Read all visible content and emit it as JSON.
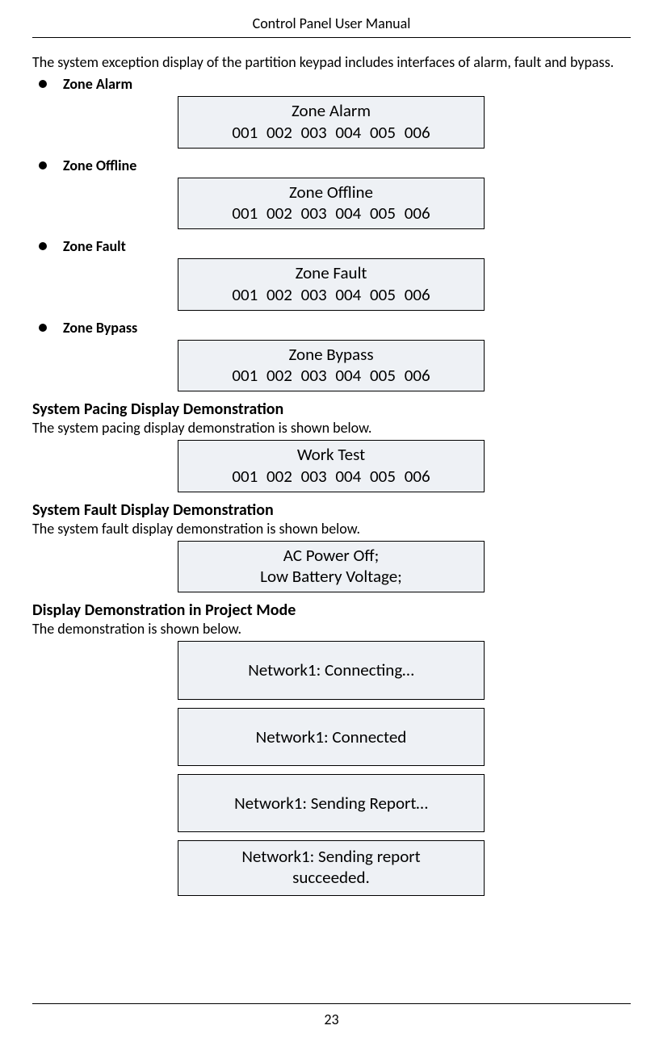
{
  "header": {
    "title": "Control Panel User Manual"
  },
  "intro": "The system exception display of the partition keypad includes interfaces of alarm, fault and bypass.",
  "zone_numbers": "001  002  003  004  005  006",
  "bullets": {
    "alarm": {
      "label": "Zone Alarm",
      "box_title": "Zone Alarm"
    },
    "offline": {
      "label": "Zone Offline",
      "box_title": "Zone Offline"
    },
    "fault": {
      "label": "Zone Fault",
      "box_title": "Zone Fault"
    },
    "bypass": {
      "label": "Zone Bypass",
      "box_title": "Zone Bypass"
    }
  },
  "sections": {
    "pacing": {
      "heading": "System Pacing Display Demonstration",
      "body": "The system pacing display demonstration is shown below.",
      "box_title": "Work Test"
    },
    "fault": {
      "heading": "System Fault Display Demonstration",
      "body": "The system fault display demonstration is shown below.",
      "box_line1": "AC Power Off;",
      "box_line2": "Low Battery Voltage;"
    },
    "project": {
      "heading": "Display Demonstration in Project Mode",
      "body": "The demonstration is shown below.",
      "box1": "Network1: Connecting…",
      "box2": "Network1: Connected",
      "box3": "Network1: Sending Report…",
      "box4_line1": "Network1: Sending report",
      "box4_line2": "succeeded."
    }
  },
  "footer": {
    "page_number": "23"
  },
  "style": {
    "box_bg": "#eef1f5",
    "box_border": "#000000",
    "text_color": "#000000",
    "page_bg": "#ffffff"
  }
}
